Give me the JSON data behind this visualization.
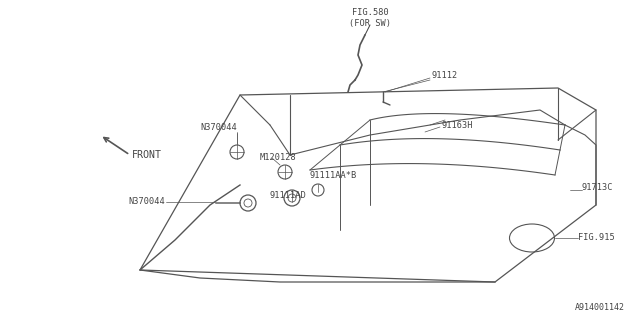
{
  "bg_color": "#ffffff",
  "line_color": "#555555",
  "text_color": "#444444",
  "fig_id": "A914001142",
  "labels": {
    "FIG580": "FIG.580\n(FOR SW)",
    "91112": "91112",
    "91163H": "91163H",
    "N370044_top": "N370044",
    "M120128": "M120128",
    "91111AAB": "91111AA*B",
    "91111AD": "91111AD",
    "N370044_bot": "N370044",
    "91713C": "91713C",
    "FIG915": "FIG.915",
    "FRONT": "FRONT"
  }
}
